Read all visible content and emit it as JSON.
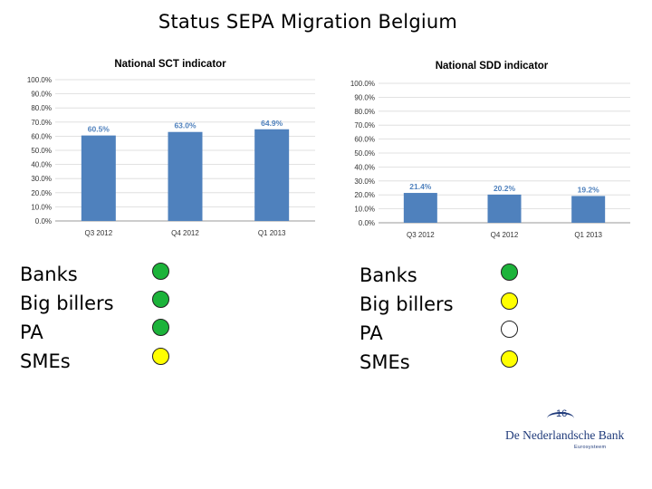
{
  "slide": {
    "title": "Status SEPA Migration Belgium",
    "page_number": "16"
  },
  "chart_data": [
    {
      "type": "bar",
      "title": "National SCT indicator",
      "categories": [
        "Q3 2012",
        "Q4 2012",
        "Q1 2013"
      ],
      "values": [
        60.5,
        63.0,
        64.9
      ],
      "data_labels": [
        "60.5%",
        "63.0%",
        "64.9%"
      ],
      "ylim": [
        0,
        100
      ],
      "yticks": [
        "0.0%",
        "10.0%",
        "20.0%",
        "30.0%",
        "40.0%",
        "50.0%",
        "60.0%",
        "70.0%",
        "80.0%",
        "90.0%",
        "100.0%"
      ],
      "grid": true,
      "bar_color": "#4f81bd",
      "label_color": "#4f81bd"
    },
    {
      "type": "bar",
      "title": "National SDD indicator",
      "categories": [
        "Q3 2012",
        "Q4 2012",
        "Q1 2013"
      ],
      "values": [
        21.4,
        20.2,
        19.2
      ],
      "data_labels": [
        "21.4%",
        "20.2%",
        "19.2%"
      ],
      "ylim": [
        0,
        100
      ],
      "yticks": [
        "0.0%",
        "10.0%",
        "20.0%",
        "30.0%",
        "40.0%",
        "50.0%",
        "60.0%",
        "70.0%",
        "80.0%",
        "90.0%",
        "100.0%"
      ],
      "grid": true,
      "bar_color": "#4f81bd",
      "label_color": "#4f81bd"
    }
  ],
  "status_lists": [
    {
      "items": [
        {
          "label": "Banks",
          "status": "green"
        },
        {
          "label": "Big billers",
          "status": "green"
        },
        {
          "label": "PA",
          "status": "green"
        },
        {
          "label": "SMEs",
          "status": "yellow"
        }
      ]
    },
    {
      "items": [
        {
          "label": "Banks",
          "status": "green"
        },
        {
          "label": "Big billers",
          "status": "yellow"
        },
        {
          "label": "PA",
          "status": "white"
        },
        {
          "label": "SMEs",
          "status": "yellow"
        }
      ]
    }
  ],
  "status_colors": {
    "green": "#1cb33a",
    "yellow": "#ffff00",
    "white": "#ffffff"
  },
  "logo": {
    "name": "De Nederlandsche Bank",
    "subtitle": "Eurosysteem",
    "color": "#1f3a7a"
  }
}
